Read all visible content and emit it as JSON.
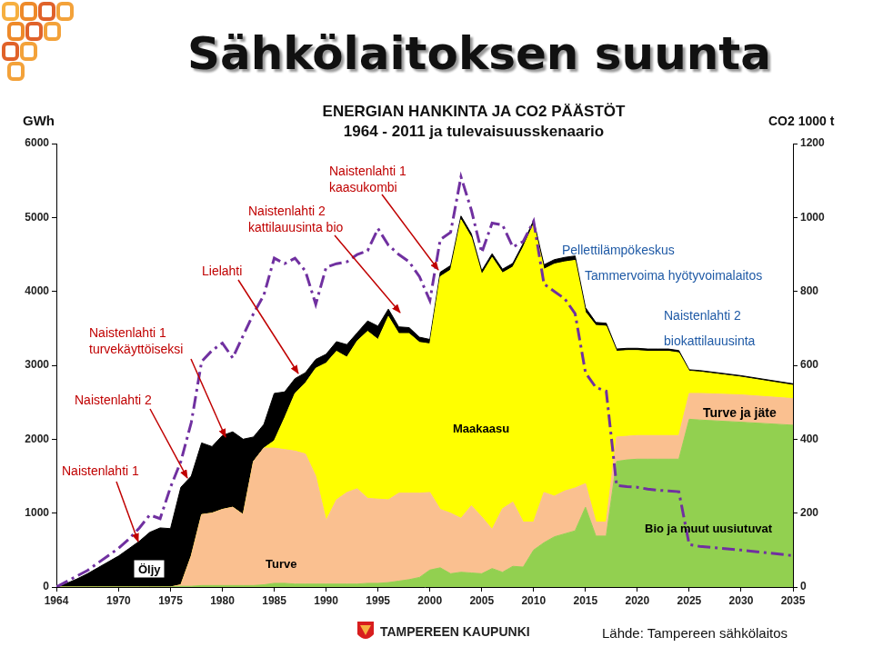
{
  "header": {
    "title": "Sähkölaitoksen suunta"
  },
  "chart_data": {
    "type": "area",
    "title": "ENERGIAN HANKINTA JA CO2 PÄÄSTÖT",
    "subtitle": "1964 - 2011 ja tulevaisuusskenaario",
    "ylabel": "GWh",
    "y2label": "CO2 1000 t",
    "stacked": true,
    "grid": false,
    "x": [
      1964,
      1965,
      1966,
      1967,
      1968,
      1969,
      1970,
      1971,
      1972,
      1973,
      1974,
      1975,
      1976,
      1977,
      1978,
      1979,
      1980,
      1981,
      1982,
      1983,
      1984,
      1985,
      1986,
      1987,
      1988,
      1989,
      1990,
      1991,
      1992,
      1993,
      1994,
      1995,
      1996,
      1997,
      1998,
      1999,
      2000,
      2001,
      2002,
      2003,
      2004,
      2005,
      2006,
      2007,
      2008,
      2009,
      2010,
      2011,
      2012,
      2013,
      2014,
      2015,
      2016,
      2017,
      2018,
      2019,
      2020,
      2021,
      2022,
      2023,
      2024,
      2025,
      2026,
      2030,
      2035
    ],
    "xlim": [
      1964,
      2035
    ],
    "xticks": [
      1964,
      1970,
      1975,
      1980,
      1985,
      1990,
      1995,
      2000,
      2005,
      2010,
      2015,
      2020,
      2025,
      2030,
      2035
    ],
    "ylim": [
      0,
      6000
    ],
    "yticks": [
      0,
      1000,
      2000,
      3000,
      4000,
      5000,
      6000
    ],
    "y2lim": [
      0,
      1200
    ],
    "y2ticks": [
      0,
      200,
      400,
      600,
      800,
      1000,
      1200
    ],
    "series": [
      {
        "name": "Bio ja muut uusiutuvat",
        "color": "#92d050",
        "values": [
          0,
          0,
          0,
          0,
          0,
          0,
          0,
          0,
          0,
          0,
          0,
          0,
          10,
          10,
          20,
          20,
          20,
          20,
          20,
          20,
          30,
          50,
          50,
          40,
          40,
          40,
          40,
          40,
          40,
          40,
          50,
          50,
          60,
          80,
          100,
          130,
          230,
          260,
          180,
          200,
          190,
          180,
          250,
          200,
          280,
          270,
          500,
          600,
          680,
          720,
          760,
          1080,
          690,
          690,
          1700,
          1720,
          1730,
          1730,
          1730,
          1730,
          1730,
          2270,
          2260,
          2230,
          2190
        ]
      },
      {
        "name": "Turve",
        "color": "#fac090",
        "values": [
          0,
          0,
          0,
          0,
          0,
          0,
          0,
          0,
          0,
          0,
          0,
          0,
          20,
          410,
          960,
          980,
          1030,
          1060,
          960,
          1680,
          1850,
          1830,
          1810,
          1800,
          1760,
          1460,
          860,
          1140,
          1240,
          1290,
          1150,
          1140,
          1120,
          1190,
          1170,
          1140,
          1050,
          790,
          820,
          730,
          910,
          770,
          530,
          860,
          870,
          610,
          380,
          680,
          550,
          580,
          580,
          320,
          190,
          190,
          330,
          320,
          320,
          320,
          320,
          320,
          320,
          350,
          360,
          370,
          360
        ]
      },
      {
        "name": "Maakaasu",
        "color": "#ffff00",
        "values": [
          0,
          0,
          0,
          0,
          0,
          0,
          0,
          0,
          0,
          0,
          0,
          0,
          0,
          0,
          0,
          0,
          0,
          0,
          0,
          0,
          0,
          100,
          430,
          780,
          960,
          1460,
          2130,
          2010,
          1830,
          2000,
          2260,
          2160,
          2480,
          2160,
          2160,
          2040,
          2010,
          3150,
          3290,
          4040,
          3630,
          3280,
          3680,
          3190,
          3180,
          3720,
          4030,
          3020,
          3140,
          3100,
          3080,
          2320,
          2660,
          2650,
          1160,
          1160,
          1150,
          1140,
          1140,
          1140,
          1120,
          300,
          290,
          240,
          180
        ]
      },
      {
        "name": "Öljy",
        "color": "#000000",
        "values": [
          0,
          50,
          110,
          180,
          260,
          340,
          420,
          520,
          620,
          740,
          800,
          790,
          1320,
          1080,
          970,
          900,
          1000,
          1020,
          1020,
          330,
          320,
          640,
          350,
          200,
          140,
          120,
          120,
          130,
          170,
          110,
          140,
          180,
          100,
          90,
          80,
          70,
          60,
          60,
          60,
          50,
          50,
          50,
          50,
          50,
          50,
          50,
          50,
          60,
          60,
          60,
          60,
          60,
          40,
          40,
          30,
          30,
          30,
          30,
          30,
          30,
          30,
          20,
          20,
          20,
          20
        ]
      },
      {
        "type": "line",
        "axis": "y2",
        "color": "#7030a0",
        "line_style": "dashdot",
        "values": [
          0,
          15,
          30,
          45,
          65,
          85,
          105,
          130,
          160,
          195,
          185,
          270,
          340,
          445,
          610,
          640,
          660,
          620,
          680,
          740,
          790,
          890,
          875,
          890,
          855,
          765,
          865,
          875,
          880,
          900,
          910,
          970,
          925,
          900,
          880,
          840,
          775,
          940,
          960,
          1110,
          1020,
          905,
          985,
          980,
          920,
          935,
          990,
          820,
          800,
          780,
          740,
          580,
          540,
          530,
          275,
          272,
          270,
          265,
          262,
          260,
          258,
          115,
          110,
          100,
          85
        ]
      }
    ],
    "annotations": [
      {
        "text": [
          "Naistenlahti 1"
        ],
        "color": "#c00000"
      },
      {
        "text": [
          "Naistenlahti 2"
        ],
        "color": "#c00000"
      },
      {
        "text": [
          "Naistenlahti 1",
          "turvekäyttöiseksi"
        ],
        "color": "#c00000"
      },
      {
        "text": [
          "Lielahti"
        ],
        "color": "#c00000"
      },
      {
        "text": [
          "Naistenlahti 2",
          "kattilauusinta bio"
        ],
        "color": "#c00000"
      },
      {
        "text": [
          "Naistenlahti 1",
          "kaasukombi"
        ],
        "color": "#c00000"
      },
      {
        "text": [
          "Pellettilämpökeskus"
        ],
        "color": "#1f5aa6"
      },
      {
        "text": [
          "Tammervoima hyötyvoimalaitos"
        ],
        "color": "#1f5aa6"
      },
      {
        "text": [
          "Naistenlahti 2",
          "biokattilauusinta"
        ],
        "color": "#1f5aa6"
      },
      {
        "text": [
          "Turve ja jäte"
        ],
        "color": "#000000"
      }
    ]
  },
  "footer": {
    "logo_text": "TAMPEREEN KAUPUNKI",
    "source": "Lähde: Tampereen sähkölaitos"
  }
}
